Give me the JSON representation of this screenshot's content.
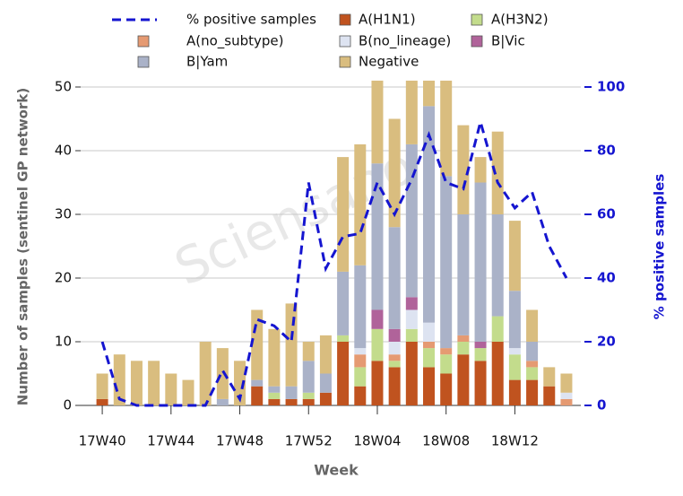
{
  "chart_data": {
    "type": "bar",
    "stacked": true,
    "watermark": "Sciensano",
    "x_label": "Week",
    "y_label": "Number of samples (sentinel GP network)",
    "y2_label": "% positive samples",
    "categories": [
      "17W40",
      null,
      null,
      null,
      "17W44",
      null,
      null,
      null,
      "17W48",
      null,
      null,
      null,
      "17W52",
      null,
      null,
      null,
      "18W04",
      null,
      null,
      null,
      "18W08",
      null,
      null,
      null,
      "18W12",
      null,
      null,
      null
    ],
    "ylim": [
      0,
      50
    ],
    "yticks": [
      0,
      10,
      20,
      30,
      40,
      50
    ],
    "y2lim": [
      0,
      100
    ],
    "y2ticks": [
      0,
      20,
      40,
      60,
      80,
      100
    ],
    "grid": true,
    "series": [
      {
        "name": "% positive samples",
        "type": "line",
        "axis": "y2",
        "color": "#1515d0",
        "values": [
          20,
          2,
          0,
          0,
          0,
          0,
          0,
          11,
          2,
          27,
          25,
          20,
          70,
          43,
          53,
          54,
          70,
          60,
          71,
          85,
          70,
          68,
          89,
          70,
          62,
          67,
          50,
          40
        ]
      },
      {
        "name": "A(H1N1)",
        "color": "#c0531f",
        "values": [
          1,
          0,
          0,
          0,
          0,
          0,
          0,
          0,
          0,
          3,
          1,
          1,
          1,
          2,
          10,
          3,
          7,
          6,
          10,
          6,
          5,
          8,
          7,
          10,
          4,
          4,
          3,
          0
        ]
      },
      {
        "name": "A(H3N2)",
        "color": "#c3dc8c",
        "values": [
          0,
          0,
          0,
          0,
          0,
          0,
          0,
          0,
          0,
          0,
          1,
          0,
          1,
          0,
          1,
          3,
          5,
          1,
          2,
          3,
          3,
          2,
          2,
          4,
          4,
          2,
          0,
          0
        ]
      },
      {
        "name": "A(no_subtype)",
        "color": "#e59a72",
        "values": [
          0,
          0,
          0,
          0,
          0,
          0,
          0,
          0,
          0,
          0,
          0,
          0,
          0,
          0,
          0,
          2,
          0,
          1,
          0,
          1,
          1,
          1,
          0,
          0,
          0,
          1,
          0,
          1
        ]
      },
      {
        "name": "B(no_lineage)",
        "color": "#dde3f1",
        "values": [
          0,
          0,
          0,
          0,
          0,
          0,
          0,
          0,
          0,
          0,
          0,
          0,
          0,
          0,
          0,
          1,
          0,
          2,
          3,
          3,
          0,
          0,
          0,
          0,
          1,
          0,
          0,
          1
        ]
      },
      {
        "name": "B|Vic",
        "color": "#b0639a",
        "values": [
          0,
          0,
          0,
          0,
          0,
          0,
          0,
          0,
          0,
          0,
          0,
          0,
          0,
          0,
          0,
          0,
          3,
          2,
          2,
          0,
          0,
          0,
          1,
          0,
          0,
          0,
          0,
          0
        ]
      },
      {
        "name": "B|Yam",
        "color": "#aab2c8",
        "values": [
          0,
          0,
          0,
          0,
          0,
          0,
          0,
          1,
          0,
          1,
          1,
          2,
          5,
          3,
          10,
          13,
          23,
          16,
          24,
          34,
          27,
          19,
          25,
          16,
          9,
          3,
          0,
          0
        ]
      },
      {
        "name": "Negative",
        "color": "#d9bd7f",
        "values": [
          4,
          8,
          7,
          7,
          5,
          4,
          10,
          8,
          7,
          11,
          9,
          13,
          3,
          6,
          18,
          19,
          13,
          17,
          10,
          4,
          15,
          14,
          4,
          13,
          11,
          5,
          3,
          3
        ]
      }
    ]
  }
}
